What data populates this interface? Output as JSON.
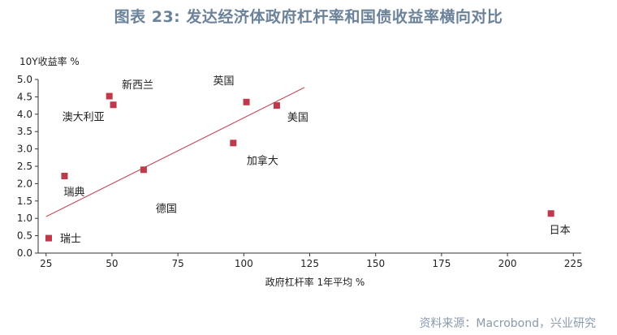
{
  "title": "图表 23: 发达经济体政府杠杆率和国债收益率横向对比",
  "source": "资料来源：Macrobond，兴业研究",
  "chart_data": {
    "type": "scatter",
    "xlabel": "政府杠杆率 1年平均 %",
    "ylabel": "10Y收益率 %",
    "xlim": [
      22,
      228
    ],
    "ylim": [
      0,
      5.0
    ],
    "xticks": [
      25,
      50,
      75,
      100,
      125,
      150,
      175,
      200,
      225
    ],
    "yticks": [
      0.0,
      0.5,
      1.0,
      1.5,
      2.0,
      2.5,
      3.0,
      3.5,
      4.0,
      4.5,
      5.0
    ],
    "points": [
      {
        "label": "瑞士",
        "x": 26,
        "y": 0.43
      },
      {
        "label": "瑞典",
        "x": 32,
        "y": 2.22
      },
      {
        "label": "澳大利亚",
        "x": 49,
        "y": 4.52
      },
      {
        "label": "新西兰",
        "x": 50.5,
        "y": 4.27
      },
      {
        "label": "德国",
        "x": 62,
        "y": 2.4
      },
      {
        "label": "加拿大",
        "x": 96,
        "y": 3.17
      },
      {
        "label": "英国",
        "x": 101,
        "y": 4.35
      },
      {
        "label": "美国",
        "x": 112.5,
        "y": 4.25
      },
      {
        "label": "日本",
        "x": 216.5,
        "y": 1.14
      }
    ],
    "trendline": {
      "x1": 25,
      "y1": 1.05,
      "x2": 123,
      "y2": 4.77
    },
    "marker_color": "#c0394b",
    "trend_color": "#c0394b"
  }
}
